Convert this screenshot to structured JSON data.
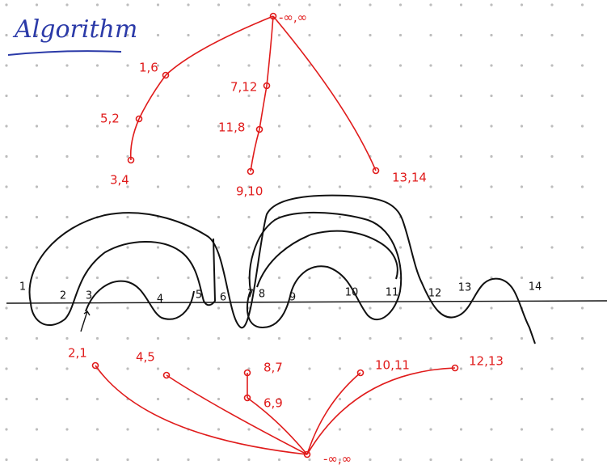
{
  "title": "Algorithm",
  "top_tree": {
    "nodes": [
      {
        "label": "-∞,∞"
      },
      {
        "label": "1,6"
      },
      {
        "label": "5,2"
      },
      {
        "label": "3,4"
      },
      {
        "label": "7,12"
      },
      {
        "label": "11,8"
      },
      {
        "label": "9,10"
      },
      {
        "label": "13,14"
      }
    ]
  },
  "bottom_tree": {
    "nodes": [
      {
        "label": "-∞,∞"
      },
      {
        "label": "2,1"
      },
      {
        "label": "4,5"
      },
      {
        "label": "8,7"
      },
      {
        "label": "6,9"
      },
      {
        "label": "10,11"
      },
      {
        "label": "12,13"
      }
    ]
  },
  "axis_labels": [
    "1",
    "2",
    "3",
    "4",
    "5",
    "6",
    "7",
    "8",
    "9",
    "10",
    "11",
    "12",
    "13",
    "14"
  ]
}
